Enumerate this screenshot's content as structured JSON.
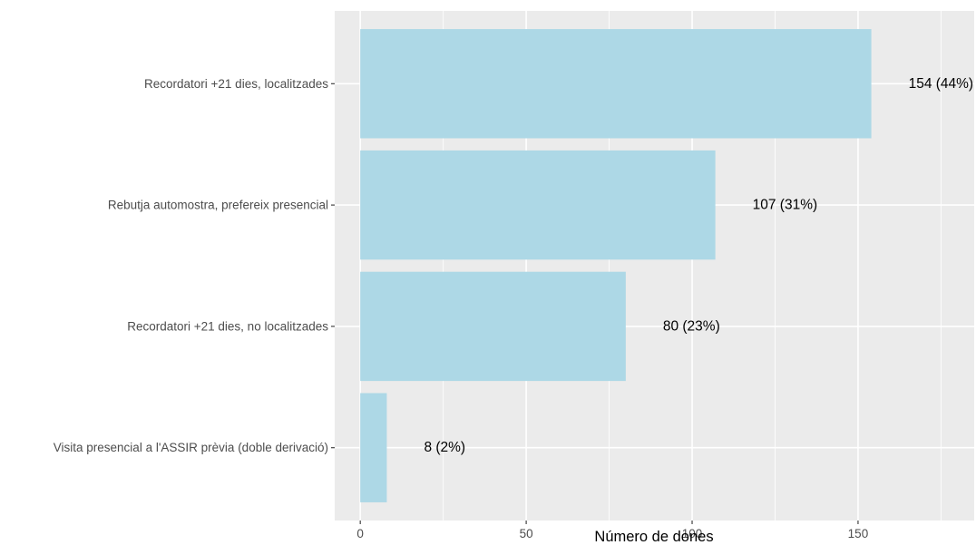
{
  "chart_data": {
    "type": "bar",
    "orientation": "horizontal",
    "title": "",
    "xlabel": "Número de dones",
    "ylabel": "",
    "categories": [
      "Recordatori +21 dies, localitzades",
      "Rebutja automostra, prefereix presencial",
      "Recordatori +21 dies, no localitzades",
      "Visita presencial a l'ASSIR prèvia (doble derivació)"
    ],
    "values": [
      154,
      107,
      80,
      8
    ],
    "data_labels": [
      "154 (44%)",
      "107 (31%)",
      "80 (23%)",
      "8 (2%)"
    ],
    "xlim": [
      -7.7,
      185
    ],
    "x_ticks": [
      0,
      50,
      100,
      150
    ],
    "x_tick_labels": [
      "0",
      "50",
      "100",
      "150"
    ],
    "bar_color": "#add8e6",
    "panel_color": "#ebebeb",
    "grid": true,
    "legend": "none"
  }
}
